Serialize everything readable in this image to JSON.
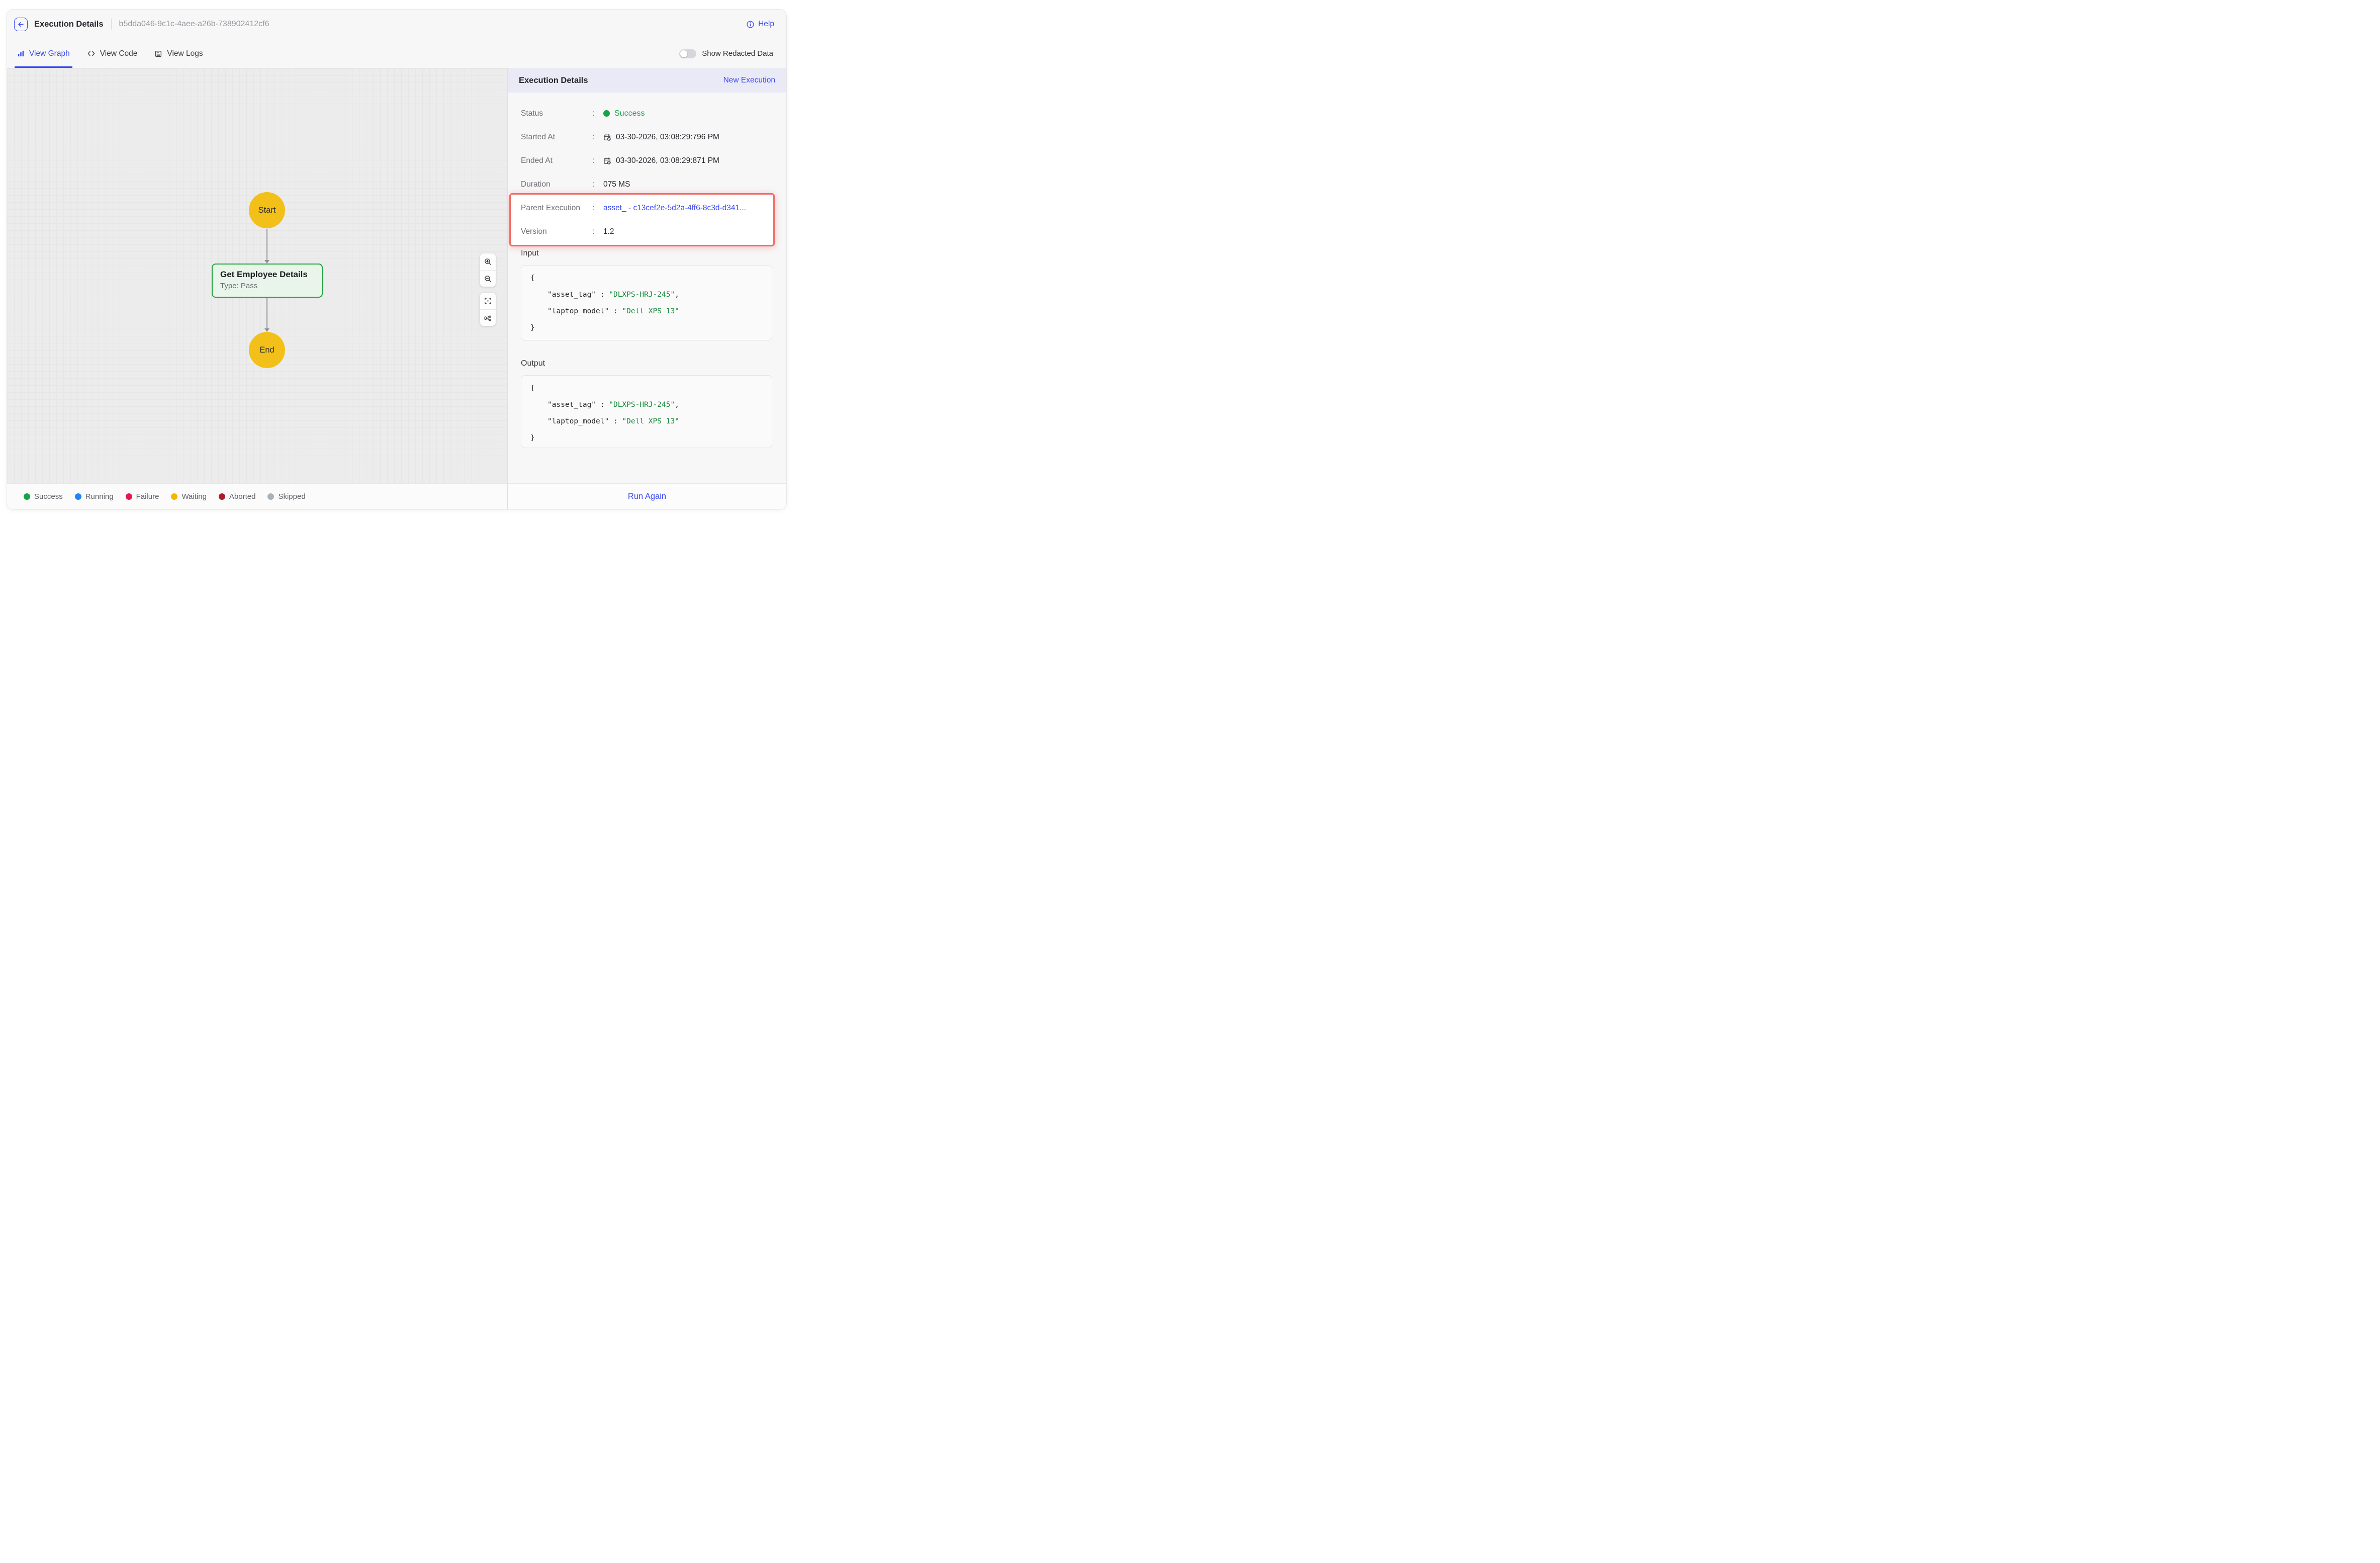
{
  "colors": {
    "accent": "#3b4af0",
    "success": "#16a34a",
    "node_yellow": "#f2c018",
    "node_green_border": "#21a33e",
    "highlight_red": "#f26d66",
    "code_string": "#178a38"
  },
  "header": {
    "title": "Execution Details",
    "execution_id": "b5dda046-9c1c-4aee-a26b-738902412cf6",
    "help_label": "Help"
  },
  "tabs": [
    {
      "label": "View Graph",
      "active": true
    },
    {
      "label": "View Code",
      "active": false
    },
    {
      "label": "View Logs",
      "active": false
    }
  ],
  "toolbar": {
    "show_redacted_label": "Show Redacted Data",
    "toggle_state": "off"
  },
  "graph": {
    "nodes": {
      "start_label": "Start",
      "task_title": "Get Employee Details",
      "task_subtitle": "Type: Pass",
      "end_label": "End"
    },
    "legend": [
      {
        "label": "Success",
        "color": "#16a34a"
      },
      {
        "label": "Running",
        "color": "#1d86f5"
      },
      {
        "label": "Failure",
        "color": "#e5164d"
      },
      {
        "label": "Waiting",
        "color": "#f2b705"
      },
      {
        "label": "Aborted",
        "color": "#ad1b28"
      },
      {
        "label": "Skipped",
        "color": "#a9b2ba"
      }
    ]
  },
  "panel": {
    "title": "Execution Details",
    "new_execution_label": "New Execution",
    "colon": ":",
    "rows": {
      "status": {
        "label": "Status",
        "value": "Success",
        "color": "#16a34a"
      },
      "started": {
        "label": "Started At",
        "value": "03-30-2026, 03:08:29:796 PM"
      },
      "ended": {
        "label": "Ended At",
        "value": "03-30-2026, 03:08:29:871 PM"
      },
      "duration": {
        "label": "Duration",
        "value": "075 MS"
      },
      "parent": {
        "label": "Parent Execution",
        "value": "asset_ - c13cef2e-5d2a-4ff6-8c3d-d341..."
      },
      "version": {
        "label": "Version",
        "value": "1.2"
      }
    },
    "input_label": "Input",
    "output_label": "Output",
    "json_lines": [
      {
        "indent": 0,
        "parts": [
          {
            "cls": "p",
            "text": "{"
          }
        ]
      },
      {
        "indent": 1,
        "parts": [
          {
            "cls": "k",
            "text": "\"asset_tag\""
          },
          {
            "cls": "p",
            "text": " : "
          },
          {
            "cls": "s",
            "text": "\"DLXPS-HRJ-245\""
          },
          {
            "cls": "p",
            "text": ","
          }
        ]
      },
      {
        "indent": 1,
        "parts": [
          {
            "cls": "k",
            "text": "\"laptop_model\""
          },
          {
            "cls": "p",
            "text": " : "
          },
          {
            "cls": "s",
            "text": "\"Dell XPS 13\""
          }
        ]
      },
      {
        "indent": 0,
        "parts": [
          {
            "cls": "p",
            "text": "}"
          }
        ]
      }
    ],
    "run_again_label": "Run Again"
  }
}
